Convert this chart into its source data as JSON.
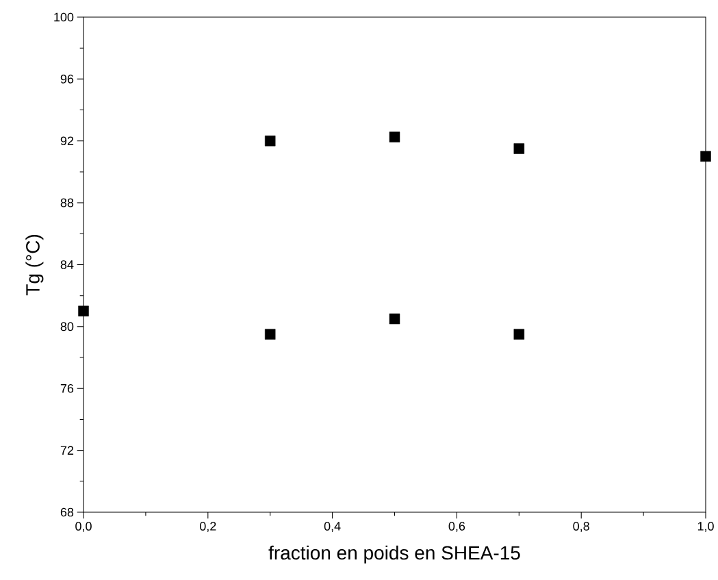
{
  "chart_data": {
    "type": "scatter",
    "xlabel": "fraction en poids en SHEA-15",
    "ylabel": "Tg (°C)",
    "series": [
      {
        "color": "#000000",
        "x": [
          0.0,
          0.3,
          0.3,
          0.5,
          0.5,
          0.7,
          0.7,
          1.0
        ],
        "values": [
          81.0,
          92.0,
          79.5,
          92.25,
          80.5,
          91.5,
          79.5,
          91.0
        ]
      }
    ],
    "marker": "square",
    "xlim": [
      0,
      1
    ],
    "ylim": [
      68,
      100
    ],
    "xticks": [
      {
        "value": 0,
        "label": "0,0"
      },
      {
        "value": 0.2,
        "label": "0,2"
      },
      {
        "value": 0.4,
        "label": "0,4"
      },
      {
        "value": 0.6,
        "label": "0,6"
      },
      {
        "value": 0.8,
        "label": "0,8"
      },
      {
        "value": 1,
        "label": "1,0"
      }
    ],
    "yticks": [
      68,
      72,
      76,
      80,
      84,
      88,
      92,
      96,
      100
    ],
    "grid": false
  }
}
